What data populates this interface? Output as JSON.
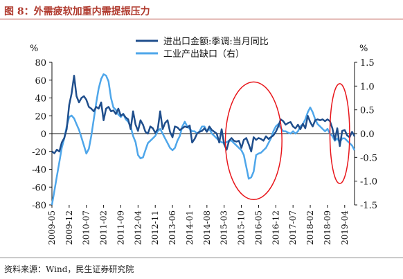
{
  "figure": {
    "title": "图 8：外需疲软加重内需提振压力",
    "source": "资料来源：Wind，民生证券研究院"
  },
  "chart_data": {
    "type": "line",
    "left_unit": "%",
    "right_unit": "%",
    "left_axis": {
      "min": -80,
      "max": 80,
      "step": 20
    },
    "right_axis": {
      "min": -1.5,
      "max": 1.5,
      "step": 0.5
    },
    "x_range": [
      "2009-05",
      "2019-08"
    ],
    "x_ticks": [
      "2009-05",
      "2009-12",
      "2010-07",
      "2011-02",
      "2011-09",
      "2012-04",
      "2012-11",
      "2013-06",
      "2014-01",
      "2014-08",
      "2015-03",
      "2015-10",
      "2016-05",
      "2016-12",
      "2017-07",
      "2018-02",
      "2018-09",
      "2019-04"
    ],
    "series": [
      {
        "name": "进出口金额:季调:当月同比",
        "axis": "left",
        "color": "#1f4e8c",
        "points": [
          [
            "2009-05",
            -20
          ],
          [
            "2009-06",
            -22
          ],
          [
            "2009-07",
            -18
          ],
          [
            "2009-08",
            -20
          ],
          [
            "2009-09",
            -10
          ],
          [
            "2009-10",
            -5
          ],
          [
            "2009-11",
            5
          ],
          [
            "2009-12",
            32
          ],
          [
            "2010-01",
            45
          ],
          [
            "2010-02",
            65
          ],
          [
            "2010-03",
            42
          ],
          [
            "2010-04",
            35
          ],
          [
            "2010-05",
            40
          ],
          [
            "2010-06",
            42
          ],
          [
            "2010-07",
            38
          ],
          [
            "2010-08",
            30
          ],
          [
            "2010-09",
            28
          ],
          [
            "2010-10",
            25
          ],
          [
            "2010-11",
            30
          ],
          [
            "2010-12",
            28
          ],
          [
            "2011-01",
            35
          ],
          [
            "2011-02",
            15
          ],
          [
            "2011-03",
            28
          ],
          [
            "2011-04",
            30
          ],
          [
            "2011-05",
            25
          ],
          [
            "2011-06",
            26
          ],
          [
            "2011-07",
            22
          ],
          [
            "2011-08",
            28
          ],
          [
            "2011-09",
            20
          ],
          [
            "2011-10",
            22
          ],
          [
            "2011-11",
            18
          ],
          [
            "2011-12",
            16
          ],
          [
            "2012-01",
            5
          ],
          [
            "2012-02",
            25
          ],
          [
            "2012-03",
            10
          ],
          [
            "2012-04",
            3
          ],
          [
            "2012-05",
            15
          ],
          [
            "2012-06",
            10
          ],
          [
            "2012-07",
            2
          ],
          [
            "2012-08",
            0
          ],
          [
            "2012-09",
            8
          ],
          [
            "2012-10",
            6
          ],
          [
            "2012-11",
            1
          ],
          [
            "2012-12",
            5
          ],
          [
            "2013-01",
            25
          ],
          [
            "2013-02",
            5
          ],
          [
            "2013-03",
            12
          ],
          [
            "2013-04",
            15
          ],
          [
            "2013-05",
            2
          ],
          [
            "2013-06",
            -4
          ],
          [
            "2013-07",
            8
          ],
          [
            "2013-08",
            7
          ],
          [
            "2013-09",
            4
          ],
          [
            "2013-10",
            6
          ],
          [
            "2013-11",
            8
          ],
          [
            "2013-12",
            7
          ],
          [
            "2014-01",
            9
          ],
          [
            "2014-02",
            -10
          ],
          [
            "2014-03",
            -6
          ],
          [
            "2014-04",
            0
          ],
          [
            "2014-05",
            2
          ],
          [
            "2014-06",
            3
          ],
          [
            "2014-07",
            6
          ],
          [
            "2014-08",
            2
          ],
          [
            "2014-09",
            8
          ],
          [
            "2014-10",
            4
          ],
          [
            "2014-11",
            2
          ],
          [
            "2014-12",
            0
          ],
          [
            "2015-01",
            -10
          ],
          [
            "2015-02",
            5
          ],
          [
            "2015-03",
            -12
          ],
          [
            "2015-04",
            -18
          ],
          [
            "2015-05",
            -8
          ],
          [
            "2015-06",
            -5
          ],
          [
            "2015-07",
            -8
          ],
          [
            "2015-08",
            -9
          ],
          [
            "2015-09",
            -8
          ],
          [
            "2015-10",
            -16
          ],
          [
            "2015-11",
            -7
          ],
          [
            "2015-12",
            -5
          ],
          [
            "2016-01",
            -12
          ],
          [
            "2016-02",
            -20
          ],
          [
            "2016-03",
            -4
          ],
          [
            "2016-04",
            -7
          ],
          [
            "2016-05",
            -5
          ],
          [
            "2016-06",
            -6
          ],
          [
            "2016-07",
            -8
          ],
          [
            "2016-08",
            -3
          ],
          [
            "2016-09",
            -6
          ],
          [
            "2016-10",
            -4
          ],
          [
            "2016-11",
            -2
          ],
          [
            "2016-12",
            2
          ],
          [
            "2017-01",
            8
          ],
          [
            "2017-02",
            16
          ],
          [
            "2017-03",
            14
          ],
          [
            "2017-04",
            10
          ],
          [
            "2017-05",
            12
          ],
          [
            "2017-06",
            13
          ],
          [
            "2017-07",
            8
          ],
          [
            "2017-08",
            6
          ],
          [
            "2017-09",
            10
          ],
          [
            "2017-10",
            5
          ],
          [
            "2017-11",
            11
          ],
          [
            "2017-12",
            6
          ],
          [
            "2018-01",
            20
          ],
          [
            "2018-02",
            13
          ],
          [
            "2018-03",
            8
          ],
          [
            "2018-04",
            15
          ],
          [
            "2018-05",
            16
          ],
          [
            "2018-06",
            15
          ],
          [
            "2018-07",
            16
          ],
          [
            "2018-08",
            14
          ],
          [
            "2018-09",
            16
          ],
          [
            "2018-10",
            14
          ],
          [
            "2018-11",
            6
          ],
          [
            "2018-12",
            -7
          ],
          [
            "2019-01",
            6
          ],
          [
            "2019-02",
            -14
          ],
          [
            "2019-03",
            3
          ],
          [
            "2019-04",
            4
          ],
          [
            "2019-05",
            -2
          ],
          [
            "2019-06",
            -4
          ],
          [
            "2019-07",
            2
          ],
          [
            "2019-08",
            -3
          ]
        ]
      },
      {
        "name": "工业产出缺口（右）",
        "axis": "right",
        "color": "#4ea6ea",
        "points": [
          [
            "2009-05",
            -1.5
          ],
          [
            "2009-06",
            -1.2
          ],
          [
            "2009-07",
            -0.9
          ],
          [
            "2009-08",
            -0.6
          ],
          [
            "2009-09",
            -0.3
          ],
          [
            "2009-10",
            -0.1
          ],
          [
            "2009-11",
            0.15
          ],
          [
            "2009-12",
            0.35
          ],
          [
            "2010-01",
            0.38
          ],
          [
            "2010-02",
            0.32
          ],
          [
            "2010-03",
            0.2
          ],
          [
            "2010-04",
            0.08
          ],
          [
            "2010-05",
            -0.08
          ],
          [
            "2010-06",
            -0.25
          ],
          [
            "2010-07",
            -0.42
          ],
          [
            "2010-08",
            -0.32
          ],
          [
            "2010-09",
            -0.05
          ],
          [
            "2010-10",
            0.3
          ],
          [
            "2010-11",
            0.65
          ],
          [
            "2010-12",
            0.95
          ],
          [
            "2011-01",
            1.15
          ],
          [
            "2011-02",
            1.25
          ],
          [
            "2011-03",
            1.22
          ],
          [
            "2011-04",
            1.1
          ],
          [
            "2011-05",
            0.75
          ],
          [
            "2011-06",
            0.55
          ],
          [
            "2011-07",
            0.5
          ],
          [
            "2011-08",
            0.4
          ],
          [
            "2011-09",
            0.35
          ],
          [
            "2011-10",
            0.42
          ],
          [
            "2011-11",
            0.3
          ],
          [
            "2011-12",
            0.25
          ],
          [
            "2012-01",
            0.15
          ],
          [
            "2012-02",
            -0.05
          ],
          [
            "2012-03",
            -0.18
          ],
          [
            "2012-04",
            -0.45
          ],
          [
            "2012-05",
            -0.52
          ],
          [
            "2012-06",
            -0.5
          ],
          [
            "2012-07",
            -0.35
          ],
          [
            "2012-08",
            -0.2
          ],
          [
            "2012-09",
            -0.15
          ],
          [
            "2012-10",
            -0.1
          ],
          [
            "2012-11",
            -0.05
          ],
          [
            "2012-12",
            0.05
          ],
          [
            "2013-01",
            0.1
          ],
          [
            "2013-02",
            0.0
          ],
          [
            "2013-03",
            -0.1
          ],
          [
            "2013-04",
            -0.2
          ],
          [
            "2013-05",
            -0.3
          ],
          [
            "2013-06",
            -0.35
          ],
          [
            "2013-07",
            -0.3
          ],
          [
            "2013-08",
            -0.15
          ],
          [
            "2013-09",
            -0.05
          ],
          [
            "2013-10",
            0.15
          ],
          [
            "2013-11",
            0.25
          ],
          [
            "2013-12",
            0.15
          ],
          [
            "2014-01",
            0.1
          ],
          [
            "2014-02",
            0.05
          ],
          [
            "2014-03",
            0.05
          ],
          [
            "2014-04",
            0.0
          ],
          [
            "2014-05",
            0.05
          ],
          [
            "2014-06",
            0.15
          ],
          [
            "2014-07",
            0.15
          ],
          [
            "2014-08",
            0.05
          ],
          [
            "2014-09",
            0.1
          ],
          [
            "2014-10",
            0.0
          ],
          [
            "2014-11",
            -0.05
          ],
          [
            "2014-12",
            -0.1
          ],
          [
            "2015-01",
            -0.15
          ],
          [
            "2015-02",
            -0.18
          ],
          [
            "2015-03",
            -0.2
          ],
          [
            "2015-04",
            -0.18
          ],
          [
            "2015-05",
            -0.15
          ],
          [
            "2015-06",
            -0.15
          ],
          [
            "2015-07",
            -0.2
          ],
          [
            "2015-08",
            -0.25
          ],
          [
            "2015-09",
            -0.3
          ],
          [
            "2015-10",
            -0.35
          ],
          [
            "2015-11",
            -0.45
          ],
          [
            "2015-12",
            -0.7
          ],
          [
            "2016-01",
            -0.95
          ],
          [
            "2016-02",
            -0.92
          ],
          [
            "2016-03",
            -0.8
          ],
          [
            "2016-04",
            -0.45
          ],
          [
            "2016-05",
            -0.42
          ],
          [
            "2016-06",
            -0.4
          ],
          [
            "2016-07",
            -0.35
          ],
          [
            "2016-08",
            -0.3
          ],
          [
            "2016-09",
            -0.2
          ],
          [
            "2016-10",
            -0.1
          ],
          [
            "2016-11",
            0.05
          ],
          [
            "2016-12",
            0.15
          ],
          [
            "2017-01",
            0.2
          ],
          [
            "2017-02",
            0.12
          ],
          [
            "2017-03",
            0.05
          ],
          [
            "2017-04",
            0.05
          ],
          [
            "2017-05",
            0.02
          ],
          [
            "2017-06",
            0.0
          ],
          [
            "2017-07",
            0.05
          ],
          [
            "2017-08",
            0.0
          ],
          [
            "2017-09",
            0.05
          ],
          [
            "2017-10",
            0.15
          ],
          [
            "2017-11",
            0.2
          ],
          [
            "2017-12",
            0.3
          ],
          [
            "2018-01",
            0.45
          ],
          [
            "2018-02",
            0.55
          ],
          [
            "2018-03",
            0.45
          ],
          [
            "2018-04",
            0.3
          ],
          [
            "2018-05",
            0.2
          ],
          [
            "2018-06",
            0.15
          ],
          [
            "2018-07",
            0.1
          ],
          [
            "2018-08",
            0.05
          ],
          [
            "2018-09",
            0.1
          ],
          [
            "2018-10",
            0.0
          ],
          [
            "2018-11",
            -0.05
          ],
          [
            "2018-12",
            -0.15
          ],
          [
            "2019-01",
            -0.1
          ],
          [
            "2019-02",
            -0.18
          ],
          [
            "2019-03",
            -0.1
          ],
          [
            "2019-04",
            -0.1
          ],
          [
            "2019-05",
            -0.15
          ],
          [
            "2019-06",
            -0.2
          ],
          [
            "2019-07",
            -0.25
          ],
          [
            "2019-08",
            -0.35
          ]
        ]
      }
    ],
    "annotations": [
      {
        "shape": "ellipse",
        "color": "#e8161b",
        "center": [
          "2016-03",
          -8
        ],
        "span_months": 23,
        "span_left": 66
      },
      {
        "shape": "ellipse",
        "color": "#e8161b",
        "center": [
          "2019-02",
          0
        ],
        "span_months": 8,
        "span_left": 56
      }
    ]
  }
}
